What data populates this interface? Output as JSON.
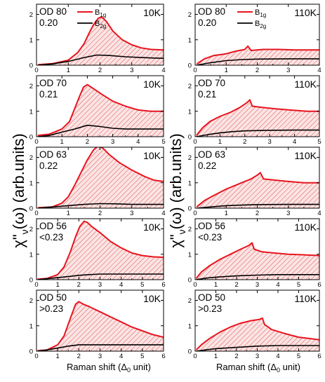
{
  "figure": {
    "y_label_main": "χ\"",
    "y_label_sub": "ν",
    "y_label_rest": "(ω) (arb.units)",
    "x_label_main": "Raman shift (Δ",
    "x_label_sub": "0",
    "x_label_rest": " unit)",
    "legend": {
      "b1g": "B",
      "b1g_sub": "1g",
      "b2g": "B",
      "b2g_sub": "2g"
    },
    "colors": {
      "b1g": "#e8141e",
      "b2g": "#000000",
      "hatch": "#e05050",
      "fill": "#fbe4e4"
    }
  },
  "chart_data": [
    {
      "type": "line",
      "sample": "OD 80",
      "doping": "0.20",
      "temperature": "10K",
      "xlim": [
        0,
        4
      ],
      "ylim": [
        0,
        2.4
      ],
      "xticks": [
        "0",
        "1",
        "2",
        "3",
        "4"
      ],
      "yticks": [
        "0",
        "1",
        "2"
      ],
      "series": [
        {
          "name": "B1g",
          "x": [
            0.05,
            0.5,
            1.0,
            1.3,
            1.5,
            1.65,
            1.8,
            1.95,
            2.05,
            2.2,
            2.4,
            2.7,
            3.0,
            3.3,
            3.6,
            4.0
          ],
          "y": [
            0.02,
            0.06,
            0.2,
            0.5,
            0.85,
            1.25,
            1.6,
            1.85,
            1.9,
            1.72,
            1.35,
            1.0,
            0.8,
            0.68,
            0.62,
            0.6
          ]
        },
        {
          "name": "B2g",
          "x": [
            0.05,
            0.5,
            1.0,
            1.5,
            1.9,
            2.3,
            2.8,
            3.3,
            3.7,
            4.0
          ],
          "y": [
            0.0,
            0.05,
            0.15,
            0.3,
            0.4,
            0.38,
            0.33,
            0.3,
            0.28,
            0.27
          ]
        }
      ]
    },
    {
      "type": "line",
      "sample": "OD 80",
      "doping": "0.20",
      "temperature": "110K",
      "xlim": [
        0,
        4
      ],
      "ylim": [
        0,
        2.4
      ],
      "xticks": [
        "0",
        "1",
        "2",
        "3",
        "4"
      ],
      "yticks": [
        "0",
        "1",
        "2"
      ],
      "series": [
        {
          "name": "B1g",
          "x": [
            0.05,
            0.3,
            0.6,
            1.0,
            1.3,
            1.6,
            1.7,
            1.8,
            2.2,
            2.7,
            3.2,
            3.6,
            4.0
          ],
          "y": [
            0.05,
            0.25,
            0.38,
            0.45,
            0.55,
            0.62,
            0.75,
            0.58,
            0.62,
            0.62,
            0.6,
            0.6,
            0.6
          ]
        },
        {
          "name": "B2g",
          "x": [
            0.05,
            0.5,
            1.0,
            1.5,
            2.0,
            3.0,
            4.0
          ],
          "y": [
            0.0,
            0.1,
            0.18,
            0.22,
            0.24,
            0.25,
            0.25
          ]
        }
      ]
    },
    {
      "type": "line",
      "sample": "OD 70",
      "doping": "0.21",
      "temperature": "10K",
      "xlim": [
        0,
        5
      ],
      "ylim": [
        0,
        2.4
      ],
      "xticks": [
        "0",
        "1",
        "2",
        "3",
        "4",
        "5"
      ],
      "yticks": [
        "0",
        "1",
        "2"
      ],
      "series": [
        {
          "name": "B1g",
          "x": [
            0.05,
            0.5,
            1.0,
            1.3,
            1.5,
            1.7,
            1.85,
            2.0,
            2.15,
            2.3,
            2.6,
            3.0,
            3.5,
            4.0,
            4.5,
            5.0
          ],
          "y": [
            0.05,
            0.1,
            0.3,
            0.6,
            1.1,
            1.6,
            1.95,
            2.05,
            1.95,
            1.85,
            1.65,
            1.4,
            1.2,
            1.05,
            1.0,
            1.0
          ]
        },
        {
          "name": "B2g",
          "x": [
            0.05,
            0.5,
            1.0,
            1.5,
            2.0,
            2.5,
            3.0,
            3.5,
            4.0,
            5.0
          ],
          "y": [
            0.0,
            0.05,
            0.18,
            0.3,
            0.45,
            0.4,
            0.33,
            0.3,
            0.3,
            0.3
          ]
        }
      ]
    },
    {
      "type": "line",
      "sample": "OD 70",
      "doping": "0.21",
      "temperature": "110K",
      "xlim": [
        0,
        5
      ],
      "ylim": [
        0,
        2.4
      ],
      "xticks": [
        "0",
        "1",
        "2",
        "3",
        "4",
        "5"
      ],
      "yticks": [
        "0",
        "1",
        "2"
      ],
      "series": [
        {
          "name": "B1g",
          "x": [
            0.05,
            0.3,
            0.6,
            1.0,
            1.4,
            1.8,
            2.1,
            2.2,
            2.3,
            2.7,
            3.2,
            3.8,
            4.5,
            5.0
          ],
          "y": [
            0.05,
            0.35,
            0.6,
            0.8,
            0.95,
            1.15,
            1.35,
            1.45,
            1.2,
            1.15,
            1.1,
            1.05,
            1.0,
            1.0
          ]
        },
        {
          "name": "B2g",
          "x": [
            0.05,
            0.5,
            1.0,
            1.5,
            2.0,
            3.0,
            4.0,
            5.0
          ],
          "y": [
            0.0,
            0.08,
            0.15,
            0.2,
            0.23,
            0.25,
            0.26,
            0.26
          ]
        }
      ]
    },
    {
      "type": "line",
      "sample": "OD 63",
      "doping": "0.22",
      "temperature": "10K",
      "xlim": [
        0,
        4
      ],
      "ylim": [
        0,
        2.4
      ],
      "xticks": [
        "0",
        "1",
        "2",
        "3",
        "4"
      ],
      "yticks": [
        "0",
        "1",
        "2"
      ],
      "series": [
        {
          "name": "B1g",
          "x": [
            0.05,
            0.5,
            0.8,
            1.0,
            1.2,
            1.4,
            1.6,
            1.8,
            1.95,
            2.1,
            2.3,
            2.6,
            3.0,
            3.4,
            3.7,
            4.0
          ],
          "y": [
            0.02,
            0.05,
            0.2,
            0.45,
            0.9,
            1.4,
            1.9,
            2.3,
            2.45,
            2.35,
            2.1,
            1.8,
            1.5,
            1.25,
            1.1,
            1.05
          ]
        },
        {
          "name": "B2g",
          "x": [
            0.05,
            0.5,
            1.0,
            1.5,
            2.0,
            2.5,
            3.0,
            3.5,
            4.0
          ],
          "y": [
            0.0,
            0.05,
            0.1,
            0.15,
            0.18,
            0.17,
            0.15,
            0.15,
            0.15
          ]
        }
      ]
    },
    {
      "type": "line",
      "sample": "OD 63",
      "doping": "0.22",
      "temperature": "110K",
      "xlim": [
        0,
        4
      ],
      "ylim": [
        0,
        2.4
      ],
      "xticks": [
        "0",
        "1",
        "2",
        "3",
        "4"
      ],
      "yticks": [
        "0",
        "1",
        "2"
      ],
      "series": [
        {
          "name": "B1g",
          "x": [
            0.05,
            0.3,
            0.6,
            1.0,
            1.4,
            1.8,
            2.0,
            2.1,
            2.2,
            2.6,
            3.0,
            3.5,
            4.0
          ],
          "y": [
            0.05,
            0.3,
            0.5,
            0.75,
            0.95,
            1.15,
            1.3,
            1.4,
            1.15,
            1.1,
            1.05,
            1.0,
            1.0
          ]
        },
        {
          "name": "B2g",
          "x": [
            0.05,
            0.5,
            1.0,
            1.5,
            2.0,
            3.0,
            4.0
          ],
          "y": [
            0.0,
            0.05,
            0.1,
            0.12,
            0.14,
            0.15,
            0.15
          ]
        }
      ]
    },
    {
      "type": "line",
      "sample": "OD 56",
      "doping": "<0.23",
      "temperature": "10K",
      "xlim": [
        0,
        6
      ],
      "ylim": [
        0,
        2.4
      ],
      "xticks": [
        "0",
        "1",
        "2",
        "3",
        "4",
        "5",
        "6"
      ],
      "yticks": [
        "0",
        "1",
        "2"
      ],
      "series": [
        {
          "name": "B1g",
          "x": [
            0.05,
            0.5,
            1.0,
            1.3,
            1.6,
            1.85,
            2.05,
            2.25,
            2.4,
            2.6,
            3.0,
            3.5,
            4.0,
            4.5,
            5.0,
            5.5,
            6.0
          ],
          "y": [
            0.02,
            0.05,
            0.2,
            0.5,
            1.1,
            1.7,
            2.1,
            2.3,
            2.25,
            2.1,
            1.85,
            1.5,
            1.25,
            1.05,
            0.95,
            0.9,
            0.88
          ]
        },
        {
          "name": "B2g",
          "x": [
            0.05,
            0.5,
            1.0,
            1.5,
            2.0,
            2.5,
            3.0,
            4.0,
            5.0,
            6.0
          ],
          "y": [
            0.0,
            0.04,
            0.08,
            0.12,
            0.17,
            0.2,
            0.22,
            0.22,
            0.22,
            0.22
          ]
        }
      ]
    },
    {
      "type": "line",
      "sample": "OD 56",
      "doping": "<0.23",
      "temperature": "110K",
      "xlim": [
        0,
        6
      ],
      "ylim": [
        0,
        2.4
      ],
      "xticks": [
        "0",
        "1",
        "2",
        "3",
        "4",
        "5",
        "6"
      ],
      "yticks": [
        "0",
        "1",
        "2"
      ],
      "series": [
        {
          "name": "B1g",
          "x": [
            0.05,
            0.3,
            0.7,
            1.2,
            1.7,
            2.2,
            2.6,
            2.75,
            2.85,
            3.2,
            3.8,
            4.5,
            5.2,
            6.0
          ],
          "y": [
            0.05,
            0.3,
            0.55,
            0.8,
            1.0,
            1.2,
            1.35,
            1.45,
            1.2,
            1.1,
            1.05,
            1.0,
            0.98,
            0.95
          ]
        },
        {
          "name": "B2g",
          "x": [
            0.05,
            0.5,
            1.0,
            2.0,
            3.0,
            4.0,
            5.0,
            6.0
          ],
          "y": [
            0.0,
            0.06,
            0.1,
            0.15,
            0.18,
            0.2,
            0.2,
            0.2
          ]
        }
      ]
    },
    {
      "type": "line",
      "sample": "OD 50",
      "doping": ">0.23",
      "temperature": "10K",
      "xlim": [
        0,
        6
      ],
      "ylim": [
        0,
        2.4
      ],
      "xticks": [
        "0",
        "1",
        "2",
        "3",
        "4",
        "5",
        "6"
      ],
      "yticks": [
        "0",
        "1",
        "2"
      ],
      "series": [
        {
          "name": "B1g",
          "x": [
            0.05,
            0.5,
            1.0,
            1.3,
            1.6,
            1.85,
            2.0,
            2.2,
            2.5,
            3.0,
            3.5,
            4.0,
            4.5,
            5.0,
            5.5,
            6.0
          ],
          "y": [
            0.02,
            0.05,
            0.25,
            0.6,
            1.3,
            1.85,
            1.95,
            1.85,
            1.75,
            1.55,
            1.35,
            1.15,
            0.95,
            0.8,
            0.65,
            0.55
          ]
        },
        {
          "name": "B2g",
          "x": [
            0.05,
            0.5,
            1.0,
            1.5,
            2.0,
            3.0,
            4.0,
            5.0,
            6.0
          ],
          "y": [
            0.0,
            0.05,
            0.12,
            0.2,
            0.25,
            0.25,
            0.25,
            0.25,
            0.25
          ]
        }
      ]
    },
    {
      "type": "line",
      "sample": "OD 50",
      "doping": ">0.23",
      "temperature": "110K",
      "xlim": [
        0,
        6
      ],
      "ylim": [
        0,
        2.4
      ],
      "xticks": [
        "0",
        "1",
        "2",
        "3",
        "4",
        "5",
        "6"
      ],
      "yticks": [
        "0",
        "1",
        "2"
      ],
      "series": [
        {
          "name": "B1g",
          "x": [
            0.05,
            0.3,
            0.7,
            1.2,
            1.7,
            2.2,
            2.7,
            3.1,
            3.25,
            3.35,
            3.7,
            4.3,
            5.0,
            5.5,
            6.0
          ],
          "y": [
            0.05,
            0.25,
            0.5,
            0.75,
            0.95,
            1.1,
            1.2,
            1.25,
            1.3,
            1.05,
            0.85,
            0.7,
            0.55,
            0.5,
            0.45
          ]
        },
        {
          "name": "B2g",
          "x": [
            0.05,
            0.5,
            1.0,
            2.0,
            3.0,
            4.0,
            5.0,
            6.0
          ],
          "y": [
            0.0,
            0.05,
            0.1,
            0.15,
            0.2,
            0.22,
            0.22,
            0.22
          ]
        }
      ]
    }
  ]
}
